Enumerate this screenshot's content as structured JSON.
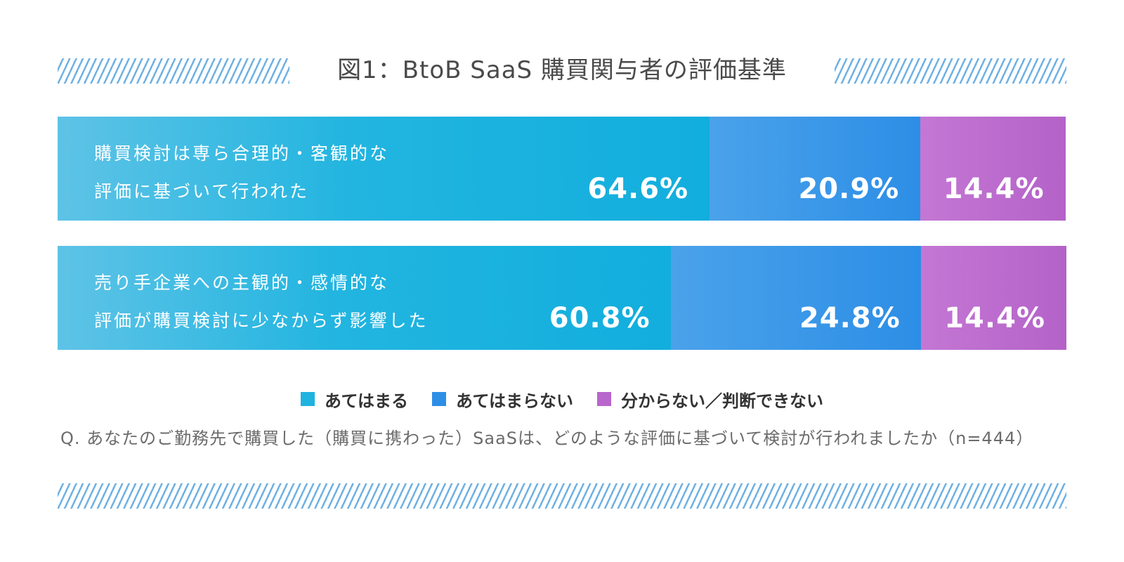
{
  "chart_data": {
    "type": "bar",
    "orientation": "horizontal",
    "stacked": true,
    "title": "図1：BtoB SaaS 購買関与者の評価基準",
    "categories": [
      [
        "購買検討は専ら合理的・客観的な",
        "評価に基づいて行われた"
      ],
      [
        "売り手企業への主観的・感情的な",
        "評価が購買検討に少なからず影響した"
      ]
    ],
    "series": [
      {
        "name": "あてはまる",
        "color": "#1fb3e0",
        "values": [
          64.6,
          60.8
        ],
        "labels": [
          "64.6%",
          "60.8%"
        ]
      },
      {
        "name": "あてはまらない",
        "color": "#2d8ee6",
        "values": [
          20.9,
          24.8
        ],
        "labels": [
          "20.9%",
          "24.8%"
        ]
      },
      {
        "name": "分からない／判断できない",
        "color": "#b866cc",
        "values": [
          14.4,
          14.4
        ],
        "labels": [
          "14.4%",
          "14.4%"
        ]
      }
    ],
    "xlim": [
      0,
      100
    ],
    "legend_position": "bottom",
    "grid": false
  },
  "question": "Q. あなたのご勤務先で購買した（購買に携わった）SaaSは、どのような評価に基づいて検討が行われましたか（n=444）"
}
